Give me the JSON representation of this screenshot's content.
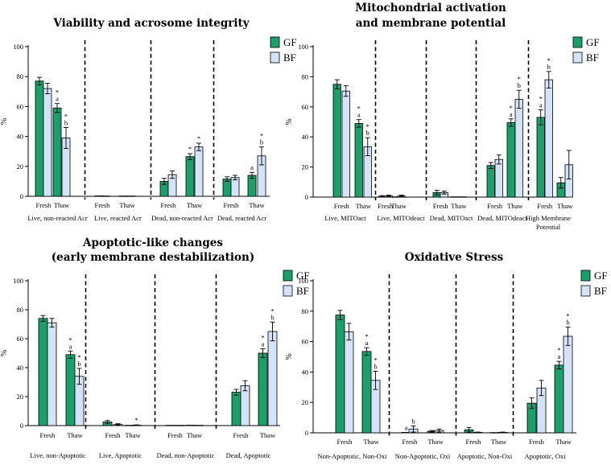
{
  "colors": {
    "GF": "#1aa06a",
    "BF": "#d4e3f8",
    "stroke": "#000000"
  },
  "chart_data": [
    {
      "type": "bar",
      "title": [
        "Viability and acrosome integrity"
      ],
      "ylabel": "%",
      "ylim": [
        0,
        100
      ],
      "yticks": [
        0,
        20,
        40,
        60,
        80,
        100
      ],
      "legend": [
        "GF",
        "BF"
      ],
      "sub_labels": [
        "Fresh",
        "Thaw"
      ],
      "groups": [
        {
          "label": [
            "Live, non-reacted Acr"
          ],
          "bars": [
            {
              "cond": "Fresh",
              "series": "GF",
              "value": 77,
              "err": 2.5,
              "ann": []
            },
            {
              "cond": "Fresh",
              "series": "BF",
              "value": 72,
              "err": 3.5,
              "ann": []
            },
            {
              "cond": "Thaw",
              "series": "GF",
              "value": 59,
              "err": 3,
              "ann": [
                "*",
                "a"
              ]
            },
            {
              "cond": "Thaw",
              "series": "BF",
              "value": 39,
              "err": 7,
              "ann": [
                "*",
                "b"
              ]
            }
          ]
        },
        {
          "label": [
            "Live, reacted Acr"
          ],
          "bars": [
            {
              "cond": "Fresh",
              "series": "GF",
              "value": 0.3,
              "err": 0,
              "ann": []
            },
            {
              "cond": "Fresh",
              "series": "BF",
              "value": 0.2,
              "err": 0,
              "ann": []
            },
            {
              "cond": "Thaw",
              "series": "GF",
              "value": 0.2,
              "err": 0,
              "ann": []
            },
            {
              "cond": "Thaw",
              "series": "BF",
              "value": 0.2,
              "err": 0,
              "ann": []
            }
          ]
        },
        {
          "label": [
            "Dead, non-reacted Acr"
          ],
          "bars": [
            {
              "cond": "Fresh",
              "series": "GF",
              "value": 10,
              "err": 2,
              "ann": []
            },
            {
              "cond": "Fresh",
              "series": "BF",
              "value": 14.5,
              "err": 2.5,
              "ann": []
            },
            {
              "cond": "Thaw",
              "series": "GF",
              "value": 26.5,
              "err": 2,
              "ann": [
                "*"
              ]
            },
            {
              "cond": "Thaw",
              "series": "BF",
              "value": 33,
              "err": 2.5,
              "ann": [
                "*"
              ]
            }
          ]
        },
        {
          "label": [
            "Dead, reacted Acr"
          ],
          "bars": [
            {
              "cond": "Fresh",
              "series": "GF",
              "value": 11.5,
              "err": 1.5,
              "ann": []
            },
            {
              "cond": "Fresh",
              "series": "BF",
              "value": 12.5,
              "err": 1.5,
              "ann": []
            },
            {
              "cond": "Thaw",
              "series": "GF",
              "value": 14,
              "err": 2,
              "ann": [
                "a"
              ]
            },
            {
              "cond": "Thaw",
              "series": "BF",
              "value": 27,
              "err": 6,
              "ann": [
                "*",
                "b"
              ]
            }
          ]
        }
      ]
    },
    {
      "type": "bar",
      "title": [
        "Mitochondrial activation",
        "and membrane potential"
      ],
      "ylabel": "%",
      "ylim": [
        0,
        100
      ],
      "yticks": [
        0,
        20,
        40,
        60,
        80,
        100
      ],
      "legend": [
        "GF",
        "BF"
      ],
      "sub_labels": [
        "Fresh",
        "Thaw"
      ],
      "groups": [
        {
          "label": [
            "Live, MITOact"
          ],
          "bars": [
            {
              "cond": "Fresh",
              "series": "GF",
              "value": 75,
              "err": 3,
              "ann": []
            },
            {
              "cond": "Fresh",
              "series": "BF",
              "value": 70.5,
              "err": 3.5,
              "ann": []
            },
            {
              "cond": "Thaw",
              "series": "GF",
              "value": 49,
              "err": 2.5,
              "ann": [
                "*",
                "a"
              ]
            },
            {
              "cond": "Thaw",
              "series": "BF",
              "value": 33.5,
              "err": 6,
              "ann": [
                "*",
                "b"
              ]
            }
          ]
        },
        {
          "label": [
            "Live, MITOdeact"
          ],
          "bars": [
            {
              "cond": "Fresh",
              "series": "GF",
              "value": 0.5,
              "err": 0.5,
              "ann": []
            },
            {
              "cond": "Fresh",
              "series": "BF",
              "value": 0.8,
              "err": 0.5,
              "ann": []
            },
            {
              "cond": "Thaw",
              "series": "GF",
              "value": 0.2,
              "err": 0,
              "ann": []
            },
            {
              "cond": "Thaw",
              "series": "BF",
              "value": 0.8,
              "err": 0.5,
              "ann": []
            }
          ]
        },
        {
          "label": [
            "Dead, MITOact"
          ],
          "bars": [
            {
              "cond": "Fresh",
              "series": "GF",
              "value": 3,
              "err": 1.5,
              "ann": []
            },
            {
              "cond": "Fresh",
              "series": "BF",
              "value": 3,
              "err": 1,
              "ann": []
            },
            {
              "cond": "Thaw",
              "series": "GF",
              "value": 0.2,
              "err": 0,
              "ann": []
            },
            {
              "cond": "Thaw",
              "series": "BF",
              "value": 0.2,
              "err": 0,
              "ann": []
            }
          ]
        },
        {
          "label": [
            "Dead, MITOdeact"
          ],
          "bars": [
            {
              "cond": "Fresh",
              "series": "GF",
              "value": 21,
              "err": 2,
              "ann": []
            },
            {
              "cond": "Fresh",
              "series": "BF",
              "value": 25,
              "err": 3,
              "ann": []
            },
            {
              "cond": "Thaw",
              "series": "GF",
              "value": 49.5,
              "err": 2.5,
              "ann": [
                "*",
                "a"
              ]
            },
            {
              "cond": "Thaw",
              "series": "BF",
              "value": 65,
              "err": 6,
              "ann": [
                "*",
                "b"
              ]
            }
          ]
        },
        {
          "label": [
            "High Membrane",
            "Potential"
          ],
          "bars": [
            {
              "cond": "Fresh",
              "series": "GF",
              "value": 53,
              "err": 5,
              "ann": [
                "*",
                "a"
              ]
            },
            {
              "cond": "Fresh",
              "series": "BF",
              "value": 78,
              "err": 5.5,
              "ann": [
                "*",
                "b"
              ]
            },
            {
              "cond": "Thaw",
              "series": "GF",
              "value": 9.5,
              "err": 3.5,
              "ann": []
            },
            {
              "cond": "Thaw",
              "series": "BF",
              "value": 21.5,
              "err": 9.5,
              "ann": []
            }
          ]
        }
      ]
    },
    {
      "type": "bar",
      "title": [
        "Apoptotic-like changes",
        "(early membrane destabilization)"
      ],
      "ylabel": "%",
      "ylim": [
        0,
        100
      ],
      "yticks": [
        0,
        20,
        40,
        60,
        80,
        100
      ],
      "legend": [
        "GF",
        "BF"
      ],
      "sub_labels": [
        "Fresh",
        "Thaw"
      ],
      "groups": [
        {
          "label": [
            "Live, non-Apoptotic"
          ],
          "bars": [
            {
              "cond": "Fresh",
              "series": "GF",
              "value": 74,
              "err": 2,
              "ann": []
            },
            {
              "cond": "Fresh",
              "series": "BF",
              "value": 71,
              "err": 3,
              "ann": []
            },
            {
              "cond": "Thaw",
              "series": "GF",
              "value": 49,
              "err": 2.5,
              "ann": [
                "*",
                "a"
              ]
            },
            {
              "cond": "Thaw",
              "series": "BF",
              "value": 34,
              "err": 5.5,
              "ann": [
                "*",
                "b"
              ]
            }
          ]
        },
        {
          "label": [
            "Live, Apoptotic"
          ],
          "bars": [
            {
              "cond": "Fresh",
              "series": "GF",
              "value": 2.5,
              "err": 1,
              "ann": []
            },
            {
              "cond": "Fresh",
              "series": "BF",
              "value": 0.8,
              "err": 0.5,
              "ann": []
            },
            {
              "cond": "Thaw",
              "series": "GF",
              "value": 0.2,
              "err": 0,
              "ann": []
            },
            {
              "cond": "Thaw",
              "series": "BF",
              "value": 0.3,
              "err": 0.2,
              "ann": [
                "*"
              ]
            }
          ]
        },
        {
          "label": [
            "Dead, non-Apoptotic"
          ],
          "bars": [
            {
              "cond": "Fresh",
              "series": "GF",
              "value": 0.2,
              "err": 0,
              "ann": []
            },
            {
              "cond": "Fresh",
              "series": "BF",
              "value": 0.2,
              "err": 0,
              "ann": []
            },
            {
              "cond": "Thaw",
              "series": "GF",
              "value": 0.3,
              "err": 0,
              "ann": []
            },
            {
              "cond": "Thaw",
              "series": "BF",
              "value": 0.2,
              "err": 0,
              "ann": []
            }
          ]
        },
        {
          "label": [
            "Dead, Apoptotic"
          ],
          "bars": [
            {
              "cond": "Fresh",
              "series": "GF",
              "value": 23,
              "err": 2,
              "ann": []
            },
            {
              "cond": "Fresh",
              "series": "BF",
              "value": 27.5,
              "err": 3.5,
              "ann": []
            },
            {
              "cond": "Thaw",
              "series": "GF",
              "value": 50,
              "err": 3,
              "ann": [
                "*",
                "a"
              ]
            },
            {
              "cond": "Thaw",
              "series": "BF",
              "value": 65,
              "err": 6.5,
              "ann": [
                "*",
                "b"
              ]
            }
          ]
        }
      ]
    },
    {
      "type": "bar",
      "title": [
        "Oxidative Stress"
      ],
      "ylabel": "%",
      "ylim": [
        0,
        100
      ],
      "yticks": [
        0,
        20,
        40,
        60,
        80,
        100
      ],
      "legend": [
        "GF",
        "BF"
      ],
      "sub_labels": [
        "Fresh",
        "Thaw"
      ],
      "groups": [
        {
          "label": [
            "Non-Apoptotic, Non-Oxi"
          ],
          "bars": [
            {
              "cond": "Fresh",
              "series": "GF",
              "value": 77.5,
              "err": 3,
              "ann": []
            },
            {
              "cond": "Fresh",
              "series": "BF",
              "value": 66.5,
              "err": 5.5,
              "ann": []
            },
            {
              "cond": "Thaw",
              "series": "GF",
              "value": 53.5,
              "err": 2.5,
              "ann": [
                "*",
                "a"
              ]
            },
            {
              "cond": "Thaw",
              "series": "BF",
              "value": 34.5,
              "err": 6,
              "ann": [
                "*",
                "b"
              ]
            }
          ]
        },
        {
          "label": [
            "Non-Apoptotic, Oxi"
          ],
          "bars": [
            {
              "cond": "Fresh",
              "series": "GF",
              "value": 0.3,
              "err": 0,
              "ann": [
                "a"
              ]
            },
            {
              "cond": "Fresh",
              "series": "BF",
              "value": 2.5,
              "err": 2,
              "ann": [
                "b"
              ]
            },
            {
              "cond": "Thaw",
              "series": "GF",
              "value": 1,
              "err": 0.5,
              "ann": []
            },
            {
              "cond": "Thaw",
              "series": "BF",
              "value": 1.5,
              "err": 1,
              "ann": []
            }
          ]
        },
        {
          "label": [
            "Apoptotic, Non-Oxi"
          ],
          "bars": [
            {
              "cond": "Fresh",
              "series": "GF",
              "value": 2,
              "err": 1.5,
              "ann": []
            },
            {
              "cond": "Fresh",
              "series": "BF",
              "value": 0.3,
              "err": 0.2,
              "ann": []
            },
            {
              "cond": "Thaw",
              "series": "GF",
              "value": 0.2,
              "err": 0,
              "ann": []
            },
            {
              "cond": "Thaw",
              "series": "BF",
              "value": 0.3,
              "err": 0.2,
              "ann": []
            }
          ]
        },
        {
          "label": [
            "Apoptotic, Oxi"
          ],
          "bars": [
            {
              "cond": "Fresh",
              "series": "GF",
              "value": 19.5,
              "err": 3.5,
              "ann": []
            },
            {
              "cond": "Fresh",
              "series": "BF",
              "value": 29.5,
              "err": 5,
              "ann": []
            },
            {
              "cond": "Thaw",
              "series": "GF",
              "value": 44.5,
              "err": 2.5,
              "ann": [
                "*",
                "a"
              ]
            },
            {
              "cond": "Thaw",
              "series": "BF",
              "value": 63.5,
              "err": 6,
              "ann": [
                "*",
                "b"
              ]
            }
          ]
        }
      ]
    }
  ]
}
